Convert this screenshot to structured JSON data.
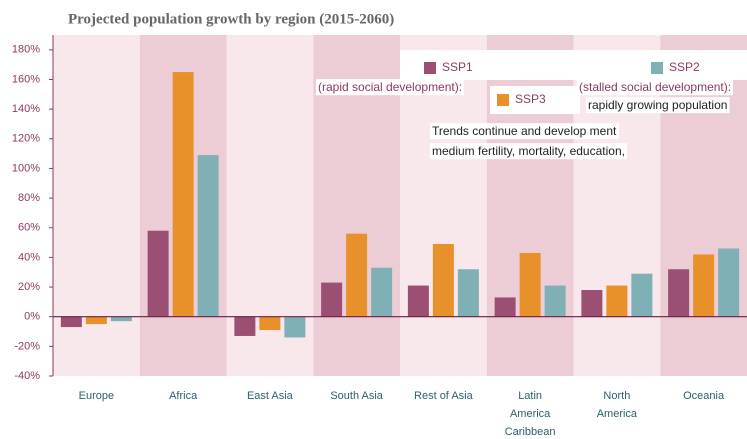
{
  "chart_data": {
    "type": "bar",
    "title": "Projected population growth by region (2015-2060)",
    "categories": [
      "Europe",
      "Africa",
      "East Asia",
      "South Asia",
      "Rest of Asia",
      "Latin America Caribbean",
      "North America",
      "Oceania"
    ],
    "series": [
      {
        "name": "SSP1",
        "color": "#9b4f72",
        "values": [
          -7,
          58,
          -13,
          23,
          21,
          13,
          18,
          32
        ]
      },
      {
        "name": "SSP3",
        "color": "#e8912a",
        "values": [
          -5,
          165,
          -9,
          56,
          49,
          43,
          21,
          42
        ]
      },
      {
        "name": "SSP2",
        "color": "#7fb0b5",
        "values": [
          -3,
          109,
          -14,
          33,
          32,
          21,
          29,
          46
        ]
      }
    ],
    "annotations": [
      "(rapid social development):",
      "(stalled social development):",
      "rapidly growing population",
      "Trends continue and develop ment",
      "medium fertility, mortality, education,"
    ],
    "ylim": [
      -40,
      190
    ],
    "yticks": [
      {
        "value": -40,
        "label": "-40%"
      },
      {
        "value": -20,
        "label": "-20%"
      },
      {
        "value": 0,
        "label": "0%"
      },
      {
        "value": 20,
        "label": "20%"
      },
      {
        "value": 40,
        "label": "40%"
      },
      {
        "value": 60,
        "label": "60%"
      },
      {
        "value": 80,
        "label": "80%"
      },
      {
        "value": 100,
        "label": "100%"
      },
      {
        "value": 120,
        "label": "120%"
      },
      {
        "value": 140,
        "label": "140%"
      },
      {
        "value": 160,
        "label": "160%"
      },
      {
        "value": 180,
        "label": "180%"
      }
    ]
  }
}
